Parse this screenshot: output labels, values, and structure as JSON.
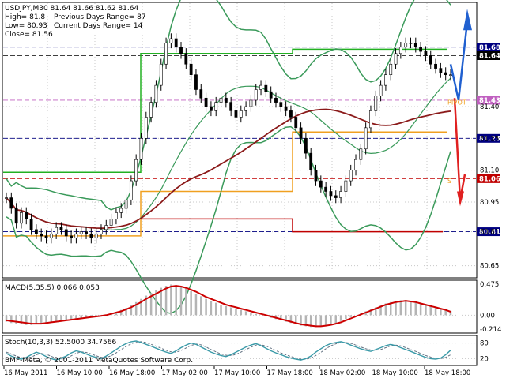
{
  "header": {
    "symbol_line": "USDJPY,M30  81.64 81.66 81.62 81.64",
    "high_line": "High= 81.8",
    "low_line": "Low= 80.93",
    "close_line": "Close= 81.56",
    "prev_range_line": "Previous Days Range= 87",
    "curr_range_line": "Current Days Range= 14"
  },
  "colors": {
    "background": "#ffffff",
    "grid": "#c8c8c8",
    "candle": "#000000",
    "bollinger": "#3a9a5a",
    "sma": "#8b1a1a",
    "green_level": "#22b022",
    "orange_level": "#f0a020",
    "red_level": "#c00000",
    "macd_hist": "#b4b4b4",
    "macd_signal": "#cc0000",
    "stoch_main": "#3a9aa8",
    "stoch_signal": "#607080",
    "navy_level": "#000080",
    "arrow_blue": "#2060d0",
    "arrow_red": "#e02020"
  },
  "footer": {
    "copyright": "BMF-Meta, © 2001-2011 MetaQuotes Software Corp."
  },
  "chart_data": [
    {
      "type": "candlestick",
      "title": "USDJPY,M30",
      "ylim": [
        80.6,
        81.88
      ],
      "price_ticks": [
        "81.40",
        "81.25",
        "81.10",
        "80.95",
        "80.81",
        "80.65"
      ],
      "level_tags": [
        {
          "label": "81.68",
          "value": 81.68,
          "color": "#000080"
        },
        {
          "label": "81.64",
          "value": 81.64,
          "color": "#000000"
        },
        {
          "label": "81.43",
          "value": 81.43,
          "color": "#c060c0"
        },
        {
          "label": "81.25",
          "value": 81.25,
          "color": "#000080"
        },
        {
          "label": "81.06",
          "value": 81.06,
          "color": "#c00000"
        },
        {
          "label": "80.81",
          "value": 80.81,
          "color": "#000080"
        }
      ],
      "pivot_labels": [
        "PIVOT",
        "S"
      ],
      "time_labels": [
        "16 May 2011",
        "16 May 10:00",
        "16 May 18:00",
        "17 May 02:00",
        "17 May 10:00",
        "17 May 18:00",
        "18 May 02:00",
        "18 May 10:00",
        "18 May 18:00"
      ],
      "series": [
        {
          "name": "close",
          "values": [
            80.97,
            80.92,
            80.85,
            80.9,
            80.87,
            80.82,
            80.8,
            80.79,
            80.78,
            80.8,
            80.83,
            80.82,
            80.79,
            80.78,
            80.8,
            80.81,
            80.8,
            80.78,
            80.8,
            80.82,
            80.84,
            80.87,
            80.9,
            80.92,
            80.96,
            81.05,
            81.15,
            81.25,
            81.35,
            81.42,
            81.5,
            81.6,
            81.7,
            81.72,
            81.68,
            81.65,
            81.6,
            81.55,
            81.48,
            81.44,
            81.4,
            81.38,
            81.42,
            81.44,
            81.42,
            81.38,
            81.35,
            81.38,
            81.4,
            81.43,
            81.48,
            81.5,
            81.47,
            81.44,
            81.42,
            81.4,
            81.38,
            81.35,
            81.3,
            81.25,
            81.18,
            81.1,
            81.05,
            81.02,
            81.0,
            80.98,
            80.97,
            81.0,
            81.05,
            81.1,
            81.15,
            81.2,
            81.3,
            81.38,
            81.45,
            81.5,
            81.55,
            81.6,
            81.65,
            81.68,
            81.7,
            81.7,
            81.68,
            81.66,
            81.64,
            81.6,
            81.58,
            81.56,
            81.55,
            81.55
          ]
        }
      ]
    },
    {
      "type": "histogram",
      "title": "MACD(5,35,5) 0.066 0.053",
      "ylim": [
        -0.25,
        0.5
      ],
      "ticks": [
        "0.475",
        "0.00",
        "-0.214"
      ],
      "series": [
        {
          "name": "MACD",
          "values": [
            -0.1,
            -0.12,
            -0.13,
            -0.14,
            -0.15,
            -0.15,
            -0.14,
            -0.13,
            -0.12,
            -0.11,
            -0.1,
            -0.09,
            -0.08,
            -0.07,
            -0.06,
            -0.05,
            -0.04,
            -0.03,
            -0.02,
            -0.01,
            0.01,
            0.03,
            0.05,
            0.08,
            0.11,
            0.15,
            0.2,
            0.25,
            0.3,
            0.34,
            0.38,
            0.42,
            0.45,
            0.47,
            0.46,
            0.44,
            0.41,
            0.37,
            0.33,
            0.29,
            0.25,
            0.22,
            0.19,
            0.16,
            0.14,
            0.12,
            0.1,
            0.08,
            0.06,
            0.04,
            0.02,
            0.0,
            -0.02,
            -0.04,
            -0.06,
            -0.08,
            -0.1,
            -0.12,
            -0.14,
            -0.16,
            -0.17,
            -0.18,
            -0.18,
            -0.17,
            -0.16,
            -0.14,
            -0.12,
            -0.09,
            -0.06,
            -0.03,
            0.0,
            0.03,
            0.06,
            0.09,
            0.12,
            0.15,
            0.18,
            0.2,
            0.22,
            0.23,
            0.23,
            0.22,
            0.2,
            0.18,
            0.16,
            0.13,
            0.11,
            0.09,
            0.07,
            0.066
          ]
        },
        {
          "name": "Signal",
          "values": [
            -0.08,
            -0.09,
            -0.1,
            -0.11,
            -0.12,
            -0.13,
            -0.13,
            -0.13,
            -0.12,
            -0.11,
            -0.1,
            -0.09,
            -0.08,
            -0.07,
            -0.06,
            -0.05,
            -0.04,
            -0.03,
            -0.02,
            -0.01,
            0.0,
            0.02,
            0.04,
            0.06,
            0.09,
            0.12,
            0.16,
            0.2,
            0.25,
            0.29,
            0.33,
            0.37,
            0.41,
            0.44,
            0.45,
            0.44,
            0.42,
            0.39,
            0.36,
            0.32,
            0.28,
            0.25,
            0.22,
            0.19,
            0.16,
            0.14,
            0.12,
            0.1,
            0.08,
            0.06,
            0.04,
            0.02,
            0.0,
            -0.02,
            -0.04,
            -0.06,
            -0.08,
            -0.1,
            -0.12,
            -0.14,
            -0.15,
            -0.16,
            -0.17,
            -0.17,
            -0.16,
            -0.15,
            -0.13,
            -0.11,
            -0.08,
            -0.05,
            -0.02,
            0.01,
            0.04,
            0.07,
            0.1,
            0.13,
            0.16,
            0.18,
            0.2,
            0.21,
            0.22,
            0.21,
            0.2,
            0.18,
            0.16,
            0.14,
            0.12,
            0.1,
            0.08,
            0.053
          ]
        }
      ]
    },
    {
      "type": "line",
      "title": "Stoch(10,3,3) 52.5000 34.7566",
      "ylim": [
        0,
        100
      ],
      "ticks": [
        "80",
        "20"
      ],
      "series": [
        {
          "name": "%K",
          "values": [
            40,
            30,
            22,
            18,
            25,
            35,
            45,
            38,
            28,
            20,
            15,
            22,
            30,
            42,
            50,
            45,
            38,
            30,
            25,
            20,
            30,
            42,
            55,
            68,
            78,
            85,
            88,
            82,
            75,
            68,
            60,
            52,
            45,
            40,
            50,
            62,
            72,
            80,
            75,
            65,
            55,
            45,
            38,
            32,
            28,
            35,
            45,
            55,
            65,
            72,
            78,
            70,
            60,
            50,
            42,
            35,
            28,
            22,
            18,
            15,
            20,
            30,
            45,
            58,
            70,
            78,
            82,
            85,
            80,
            72,
            65,
            58,
            52,
            48,
            55,
            62,
            70,
            75,
            70,
            62,
            55,
            48,
            40,
            32,
            25,
            20,
            18,
            22,
            35,
            52.5
          ]
        },
        {
          "name": "%D",
          "values": [
            45,
            38,
            30,
            24,
            22,
            26,
            35,
            40,
            37,
            29,
            21,
            19,
            22,
            31,
            41,
            46,
            44,
            38,
            31,
            25,
            25,
            31,
            42,
            55,
            67,
            77,
            84,
            85,
            82,
            75,
            68,
            60,
            52,
            46,
            45,
            51,
            61,
            71,
            76,
            73,
            65,
            55,
            46,
            38,
            33,
            32,
            36,
            45,
            55,
            64,
            72,
            73,
            69,
            60,
            51,
            42,
            35,
            28,
            23,
            18,
            18,
            22,
            32,
            44,
            58,
            69,
            77,
            82,
            82,
            79,
            72,
            65,
            58,
            53,
            52,
            55,
            62,
            69,
            72,
            69,
            62,
            55,
            48,
            40,
            32,
            26,
            21,
            20,
            25,
            34.7566
          ]
        }
      ]
    }
  ]
}
